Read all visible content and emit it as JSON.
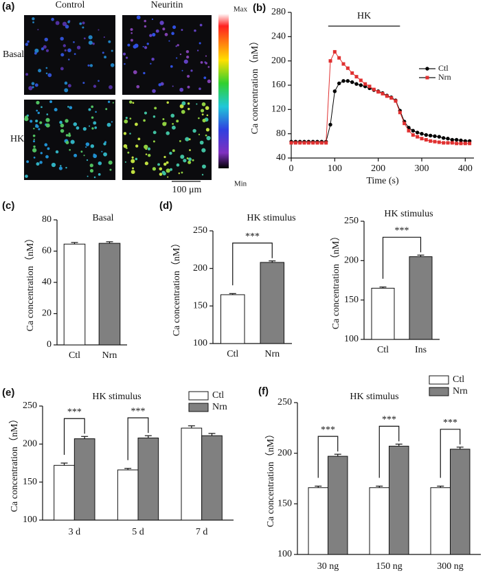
{
  "chart_data": [
    {
      "type": "image",
      "panel_label": "(a)",
      "columns": [
        "Control",
        "Neuritin"
      ],
      "rows": [
        "Basal",
        "HK"
      ],
      "colorbar_labels": [
        "Max",
        "Min"
      ],
      "scale_bar": "100 μm"
    },
    {
      "type": "line",
      "panel_label": "(b)",
      "annotation": "HK",
      "annotation_span": [
        85,
        250
      ],
      "xlabel": "Time (s)",
      "ylabel": "Ca concentration（nM）",
      "x": [
        0,
        10,
        20,
        30,
        40,
        50,
        60,
        70,
        80,
        90,
        100,
        110,
        120,
        130,
        140,
        150,
        160,
        170,
        180,
        190,
        200,
        210,
        220,
        230,
        240,
        250,
        260,
        270,
        280,
        290,
        300,
        310,
        320,
        330,
        340,
        350,
        360,
        370,
        380,
        390,
        400,
        410
      ],
      "series": [
        {
          "name": "Ctl",
          "color": "#000000",
          "marker": "circle",
          "values": [
            67,
            67,
            67,
            67,
            67,
            67,
            67,
            67,
            67,
            95,
            150,
            163,
            167,
            167,
            165,
            162,
            160,
            158,
            155,
            152,
            150,
            147,
            143,
            140,
            135,
            118,
            100,
            90,
            85,
            82,
            80,
            78,
            77,
            76,
            75,
            73,
            72,
            70,
            70,
            69,
            68,
            68
          ]
        },
        {
          "name": "Nrn",
          "color": "#e03030",
          "marker": "square",
          "values": [
            65,
            65,
            65,
            65,
            65,
            65,
            65,
            65,
            65,
            200,
            215,
            205,
            195,
            188,
            180,
            174,
            168,
            162,
            158,
            153,
            149,
            146,
            142,
            139,
            134,
            115,
            97,
            85,
            78,
            75,
            72,
            70,
            68,
            67,
            66,
            65,
            65,
            65,
            64,
            64,
            64,
            64
          ]
        }
      ],
      "xlim": [
        0,
        420
      ],
      "xticks": [
        0,
        100,
        200,
        300,
        400
      ],
      "ylim": [
        40,
        280
      ],
      "yticks": [
        40,
        80,
        120,
        160,
        200,
        240,
        280
      ]
    },
    {
      "type": "bar",
      "panel_label": "(c)",
      "title": "Basal",
      "ylabel": "Ca concentration（nM）",
      "categories": [
        "Ctl",
        "Nrn"
      ],
      "values": [
        64.5,
        65
      ],
      "errors": [
        1,
        1
      ],
      "colors": [
        "#ffffff",
        "#808080"
      ],
      "ylim": [
        0,
        80
      ],
      "yticks": [
        0,
        20,
        40,
        60,
        80
      ]
    },
    {
      "type": "bar",
      "panel_label": "(d)",
      "title": "HK stimulus",
      "ylabel": "Ca concentration（nM）",
      "categories": [
        "Ctl",
        "Nrn"
      ],
      "values": [
        165,
        208
      ],
      "errors": [
        1.5,
        2
      ],
      "colors": [
        "#ffffff",
        "#808080"
      ],
      "significance": "***",
      "ylim": [
        100,
        250
      ],
      "yticks": [
        100,
        150,
        200,
        250
      ]
    },
    {
      "type": "bar",
      "title": "HK stimulus",
      "ylabel": "Ca concentration（nM）",
      "categories": [
        "Ctl",
        "Ins"
      ],
      "values": [
        165,
        205
      ],
      "errors": [
        1.5,
        2
      ],
      "colors": [
        "#ffffff",
        "#808080"
      ],
      "significance": "***",
      "ylim": [
        100,
        250
      ],
      "yticks": [
        100,
        150,
        200,
        250
      ]
    },
    {
      "type": "grouped_bar",
      "panel_label": "(e)",
      "title": "HK stimulus",
      "ylabel": "Ca concentration（nM）",
      "categories": [
        "3 d",
        "5 d",
        "7 d"
      ],
      "series": [
        {
          "name": "Ctl",
          "color": "#ffffff",
          "values": [
            172,
            166,
            221
          ],
          "errors": [
            3,
            2,
            3
          ]
        },
        {
          "name": "Nrn",
          "color": "#808080",
          "values": [
            207,
            208,
            211
          ],
          "errors": [
            3,
            3,
            3
          ]
        }
      ],
      "significance": [
        "***",
        "***",
        null
      ],
      "ylim": [
        100,
        250
      ],
      "yticks": [
        100,
        150,
        200,
        250
      ]
    },
    {
      "type": "grouped_bar",
      "panel_label": "(f)",
      "title": "HK stimulus",
      "ylabel": "Ca concentration（nM）",
      "categories": [
        "30 ng",
        "150 ng",
        "300 ng"
      ],
      "series": [
        {
          "name": "Ctl",
          "color": "#ffffff",
          "values": [
            166,
            166,
            166
          ],
          "errors": [
            1.5,
            1.5,
            1.5
          ]
        },
        {
          "name": "Nrn",
          "color": "#808080",
          "values": [
            197,
            207,
            204
          ],
          "errors": [
            2,
            2,
            2
          ]
        }
      ],
      "significance": [
        "***",
        "***",
        "***"
      ],
      "ylim": [
        100,
        250
      ],
      "yticks": [
        100,
        150,
        200,
        250
      ]
    }
  ]
}
